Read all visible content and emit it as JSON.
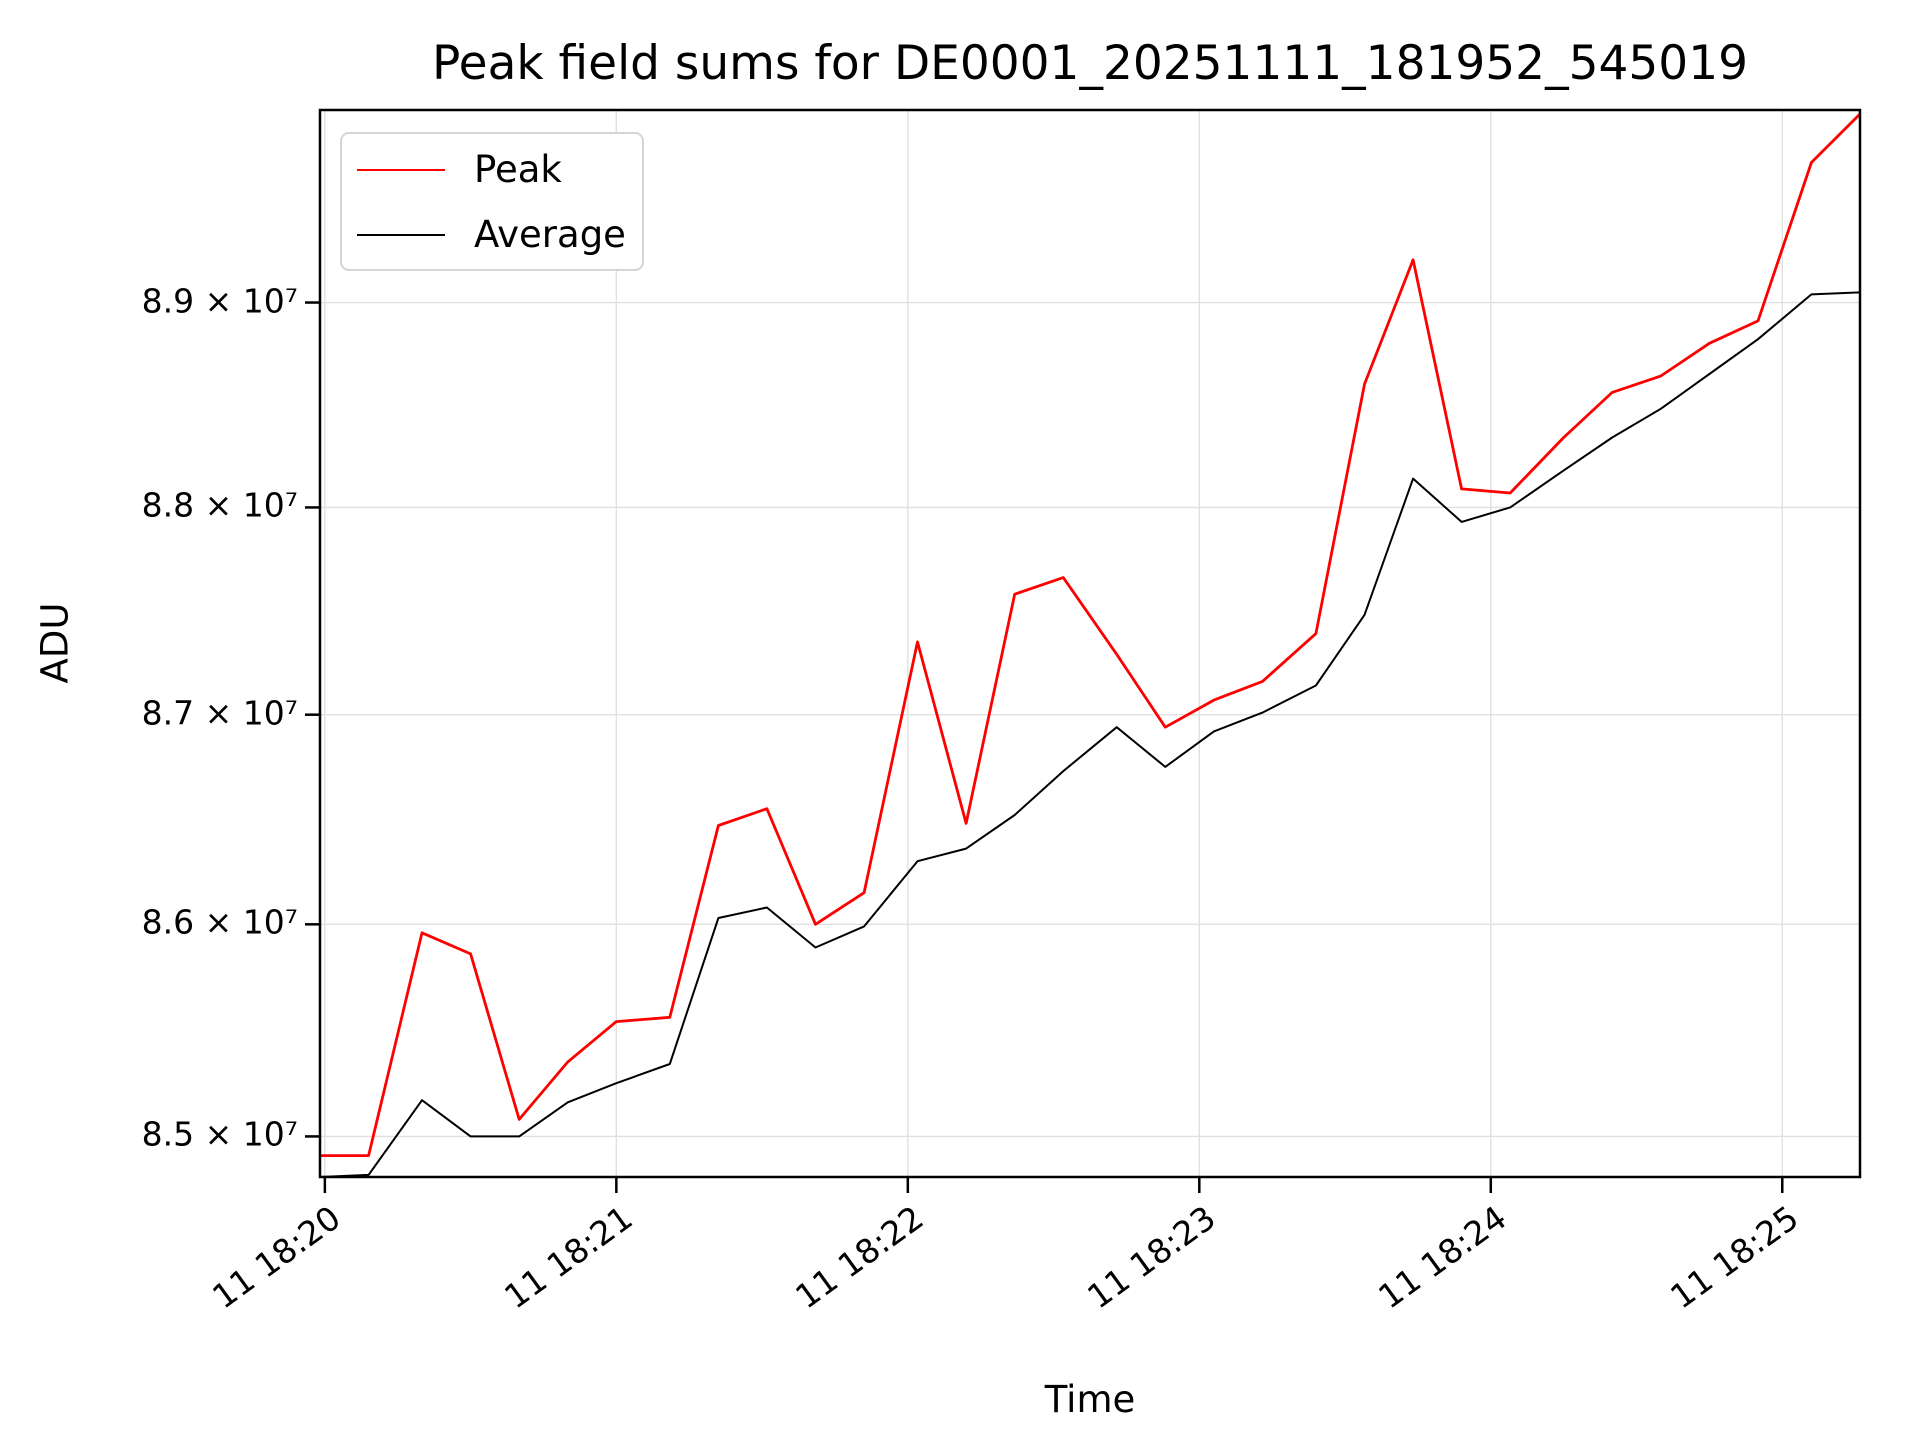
{
  "colors": {
    "peak": "#ff0000",
    "average": "#000000",
    "grid": "#e0e0e0",
    "spine": "#000000",
    "legend_border": "#d5d5d5",
    "background": "#ffffff"
  },
  "chart_data": {
    "type": "line",
    "title": "Peak field sums for DE0001_20251111_181952_545019",
    "xlabel": "Time",
    "ylabel": "ADU",
    "y_scale": "log",
    "grid": true,
    "legend_position": "upper left",
    "xlim_s": [
      -1,
      316
    ],
    "ylim": [
      84810000,
      89950000
    ],
    "x_ticks": {
      "values_s": [
        0,
        60,
        120,
        180,
        240,
        300
      ],
      "labels": [
        "11 18:20",
        "11 18:21",
        "11 18:22",
        "11 18:23",
        "11 18:24",
        "11 18:25"
      ]
    },
    "y_ticks": {
      "values": [
        85000000,
        86000000,
        87000000,
        88000000,
        89000000
      ],
      "labels": [
        "8.5 × 10⁷",
        "8.6 × 10⁷",
        "8.7 × 10⁷",
        "8.8 × 10⁷",
        "8.9 × 10⁷"
      ]
    },
    "series": [
      {
        "name": "Peak",
        "color": "#ff0000",
        "line_width": 2.8,
        "x_s": [
          -1,
          9,
          20,
          30,
          40,
          50,
          60,
          71,
          81,
          91,
          101,
          111,
          122,
          132,
          142,
          152,
          163,
          173,
          183,
          193,
          204,
          214,
          224,
          234,
          244,
          255,
          265,
          275,
          285,
          295,
          306,
          316
        ],
        "values": [
          84910000,
          84910000,
          85960000,
          85860000,
          85080000,
          85350000,
          85540000,
          85560000,
          86470000,
          86550000,
          86000000,
          86150000,
          87350000,
          86480000,
          87580000,
          87660000,
          87290000,
          86940000,
          87070000,
          87160000,
          87390000,
          88600000,
          89210000,
          88090000,
          88070000,
          88340000,
          88560000,
          88640000,
          88800000,
          88910000,
          89690000,
          89930000
        ]
      },
      {
        "name": "Average",
        "color": "#000000",
        "line_width": 2.0,
        "x_s": [
          -1,
          9,
          20,
          30,
          40,
          50,
          60,
          71,
          81,
          91,
          101,
          111,
          122,
          132,
          142,
          152,
          163,
          173,
          183,
          193,
          204,
          214,
          224,
          234,
          244,
          255,
          265,
          275,
          285,
          295,
          306,
          316
        ],
        "values": [
          84810000,
          84820000,
          85170000,
          85000000,
          85000000,
          85160000,
          85250000,
          85340000,
          86030000,
          86080000,
          85890000,
          85990000,
          86300000,
          86360000,
          86520000,
          86730000,
          86940000,
          86750000,
          86920000,
          87010000,
          87140000,
          87480000,
          88140000,
          87930000,
          88000000,
          88180000,
          88340000,
          88480000,
          88650000,
          88820000,
          89040000,
          89050000
        ]
      }
    ]
  }
}
